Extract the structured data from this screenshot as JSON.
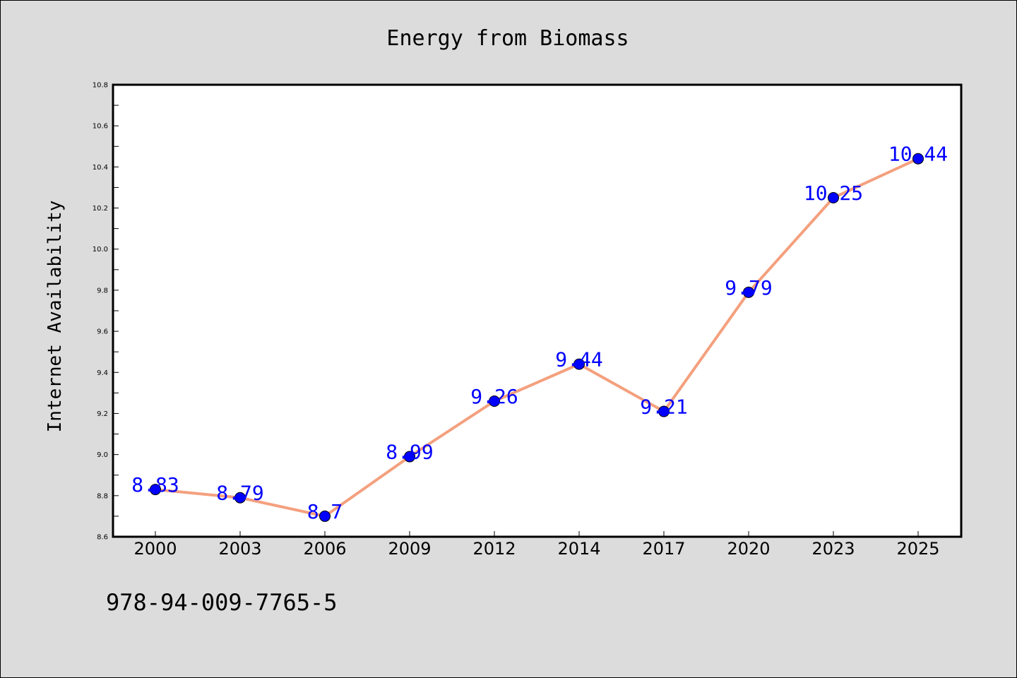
{
  "chart_data": {
    "type": "line",
    "title": "Energy from Biomass",
    "xlabel": "",
    "ylabel": "Internet Availability",
    "categories": [
      "2000",
      "2003",
      "2006",
      "2009",
      "2012",
      "2014",
      "2017",
      "2020",
      "2023",
      "2025"
    ],
    "series": [
      {
        "values": [
          8.83,
          8.79,
          8.7,
          8.99,
          9.26,
          9.44,
          9.21,
          9.79,
          10.25,
          10.44
        ],
        "labels": [
          "8.83",
          "8.79",
          "8.7",
          "8.99",
          "9.26",
          "9.44",
          "9.21",
          "9.79",
          "10.25",
          "10.44"
        ]
      }
    ],
    "ylim": [
      8.6,
      10.8
    ],
    "yticks": [
      "8.6",
      "8.8",
      "9.0",
      "9.2",
      "9.4",
      "9.6",
      "9.8",
      "10.0",
      "10.2",
      "10.4",
      "10.6",
      "10.8"
    ],
    "grid": false,
    "line_color": "#f4a07e",
    "marker_color": "#0000ff",
    "label_color": "#0000ff"
  },
  "footer": {
    "isbn": "978-94-009-7765-5"
  }
}
